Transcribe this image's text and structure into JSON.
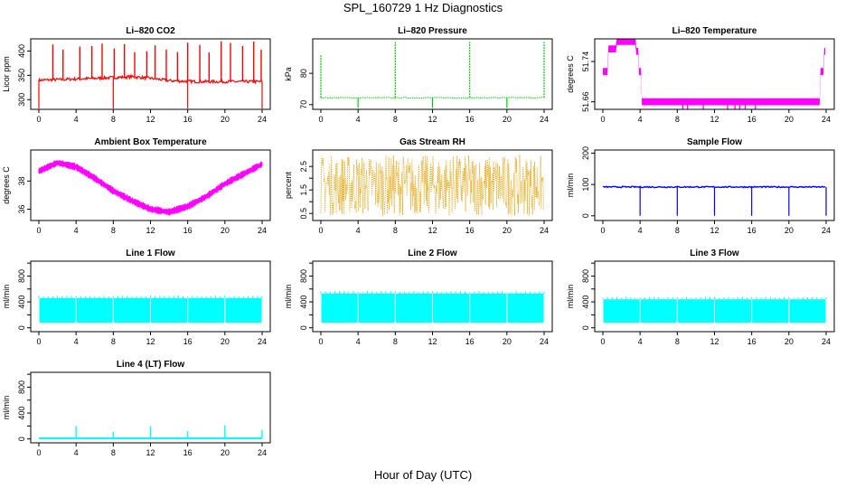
{
  "page": {
    "title": "SPL_160729  1 Hz Diagnostics",
    "xaxis_caption": "Hour of Day (UTC)"
  },
  "colors": {
    "red": "#ff0000",
    "green": "#00cc00",
    "magenta": "#ff00ff",
    "orange": "#e69f00",
    "blue": "#0000ff",
    "cyan": "#00ffff"
  },
  "chart_data": [
    {
      "type": "line",
      "title": "Li–820 CO2",
      "ylabel": "Licor ppm",
      "color": "red",
      "xlim": [
        0,
        24
      ],
      "ylim": [
        280,
        425
      ],
      "x_ticks": [
        "0",
        "4",
        "8",
        "12",
        "16",
        "20",
        "24"
      ],
      "y_ticks": [
        300,
        350,
        400
      ],
      "baseline": 342,
      "trend": [
        [
          0,
          340
        ],
        [
          5,
          343
        ],
        [
          10,
          347
        ],
        [
          12,
          344
        ],
        [
          14,
          339
        ],
        [
          17,
          337
        ],
        [
          24,
          337
        ]
      ],
      "spikes_hours": [
        1.5,
        2.6,
        4.4,
        5.7,
        6.8,
        8.1,
        9.2,
        10.3,
        11.6,
        12.5,
        13.7,
        14.9,
        16.0,
        17.3,
        18.3,
        19.6,
        20.6,
        21.9,
        23.1,
        23.9
      ],
      "spike_top": 420,
      "dip_hours": [
        0,
        8,
        16,
        24
      ],
      "dip_bottom": 282
    },
    {
      "type": "line",
      "title": "Li–820 Pressure",
      "ylabel": "kPa",
      "color": "green",
      "xlim": [
        0,
        24
      ],
      "ylim": [
        68.5,
        91
      ],
      "x_ticks": [
        "0",
        "4",
        "8",
        "12",
        "16",
        "20",
        "24"
      ],
      "y_ticks": [
        70,
        80
      ],
      "baseline": 72.2,
      "spikes": [
        [
          0,
          86
        ],
        [
          8,
          90
        ],
        [
          16,
          90
        ],
        [
          24,
          90
        ]
      ],
      "dips": [
        [
          4,
          69
        ],
        [
          12,
          69
        ],
        [
          20,
          69
        ]
      ]
    },
    {
      "type": "line",
      "title": "Li–820 Temperature",
      "ylabel": "degrees C",
      "color": "magenta",
      "xlim": [
        0,
        24
      ],
      "ylim": [
        51.645,
        51.785
      ],
      "x_ticks": [
        "0",
        "4",
        "8",
        "12",
        "16",
        "20",
        "24"
      ],
      "y_ticks": [
        "51.66",
        "51.74"
      ],
      "y_tick_values": [
        51.66,
        51.74
      ],
      "steps": [
        [
          0,
          51.72
        ],
        [
          0.6,
          51.765
        ],
        [
          1.5,
          51.78
        ],
        [
          3.6,
          51.76
        ],
        [
          3.9,
          51.72
        ],
        [
          4.2,
          51.66
        ],
        [
          23.4,
          51.72
        ],
        [
          23.8,
          51.76
        ],
        [
          24,
          51.78
        ]
      ],
      "band": 0.014
    },
    {
      "type": "line",
      "title": "Ambient Box Temperature",
      "ylabel": "degrees C",
      "color": "magenta",
      "xlim": [
        0,
        24
      ],
      "ylim": [
        35.2,
        40.2
      ],
      "x_ticks": [
        "0",
        "4",
        "8",
        "12",
        "16",
        "20",
        "24"
      ],
      "y_ticks": [
        36,
        38
      ],
      "curve": [
        [
          0,
          38.7
        ],
        [
          2,
          39.3
        ],
        [
          4,
          39.0
        ],
        [
          6,
          38.2
        ],
        [
          8,
          37.3
        ],
        [
          10,
          36.6
        ],
        [
          12,
          36.0
        ],
        [
          14,
          35.8
        ],
        [
          16,
          36.2
        ],
        [
          18,
          36.9
        ],
        [
          20,
          37.8
        ],
        [
          22,
          38.5
        ],
        [
          24,
          39.2
        ]
      ],
      "band": 0.55
    },
    {
      "type": "line",
      "title": "Gas Stream RH",
      "ylabel": "percent",
      "color": "orange",
      "xlim": [
        0,
        24
      ],
      "ylim": [
        0.2,
        3.2
      ],
      "x_ticks": [
        "0",
        "4",
        "8",
        "12",
        "16",
        "20",
        "24"
      ],
      "y_ticks": [
        "0.5",
        "1.5",
        "2.5"
      ],
      "y_tick_values": [
        0.5,
        1.0,
        1.5,
        2.0,
        2.5
      ],
      "y_tick_labels_shown": [
        "0.5",
        "1.5",
        "2.5"
      ],
      "range_low": 0.4,
      "range_high": 3.0
    },
    {
      "type": "line",
      "title": "Sample Flow",
      "ylabel": "ml/min",
      "color": "blue",
      "xlim": [
        0,
        24
      ],
      "ylim": [
        -15,
        210
      ],
      "x_ticks": [
        "0",
        "4",
        "8",
        "12",
        "16",
        "20",
        "24"
      ],
      "y_ticks": [
        0,
        100,
        200
      ],
      "baseline": 92,
      "dip_hours": [
        4,
        8,
        12,
        16,
        20,
        24
      ],
      "dip_bottom": 0
    },
    {
      "type": "line",
      "title": "Line 1 Flow",
      "ylabel": "ml/min",
      "color": "cyan",
      "xlim": [
        0,
        24
      ],
      "ylim": [
        -60,
        1030
      ],
      "x_ticks": [
        "0",
        "4",
        "8",
        "12",
        "16",
        "20",
        "24"
      ],
      "y_ticks": [
        0,
        400,
        800
      ],
      "y_tick_values": [
        0,
        200,
        400,
        600,
        800,
        1000
      ],
      "band_low": 80,
      "band_high": 460,
      "gap_hours": [
        4,
        8,
        12,
        16,
        20,
        24
      ]
    },
    {
      "type": "line",
      "title": "Line 2 Flow",
      "ylabel": "ml/min",
      "color": "cyan",
      "xlim": [
        0,
        24
      ],
      "ylim": [
        -60,
        1030
      ],
      "x_ticks": [
        "0",
        "4",
        "8",
        "12",
        "16",
        "20",
        "24"
      ],
      "y_ticks": [
        0,
        400,
        800
      ],
      "y_tick_values": [
        0,
        200,
        400,
        600,
        800,
        1000
      ],
      "band_low": 80,
      "band_high": 530,
      "gap_hours": [
        4,
        8,
        12,
        16,
        20,
        24
      ]
    },
    {
      "type": "line",
      "title": "Line 3 Flow",
      "ylabel": "ml/min",
      "color": "cyan",
      "xlim": [
        0,
        24
      ],
      "ylim": [
        -60,
        1030
      ],
      "x_ticks": [
        "0",
        "4",
        "8",
        "12",
        "16",
        "20",
        "24"
      ],
      "y_ticks": [
        0,
        400,
        800
      ],
      "y_tick_values": [
        0,
        200,
        400,
        600,
        800,
        1000
      ],
      "band_low": 80,
      "band_high": 440,
      "gap_hours": [
        4,
        8,
        12,
        16,
        20,
        24
      ]
    },
    {
      "type": "line",
      "title": "Line 4 (LT) Flow",
      "ylabel": "ml/min",
      "color": "cyan",
      "xlim": [
        0,
        24
      ],
      "ylim": [
        -60,
        1030
      ],
      "x_ticks": [
        "0",
        "4",
        "8",
        "12",
        "16",
        "20",
        "24"
      ],
      "y_ticks": [
        0,
        400,
        800
      ],
      "y_tick_values": [
        0,
        200,
        400,
        600,
        800,
        1000
      ],
      "baseline": 10,
      "spikes": [
        [
          4,
          200
        ],
        [
          8,
          110
        ],
        [
          12,
          200
        ],
        [
          16,
          120
        ],
        [
          20,
          210
        ],
        [
          24,
          140
        ]
      ]
    }
  ]
}
